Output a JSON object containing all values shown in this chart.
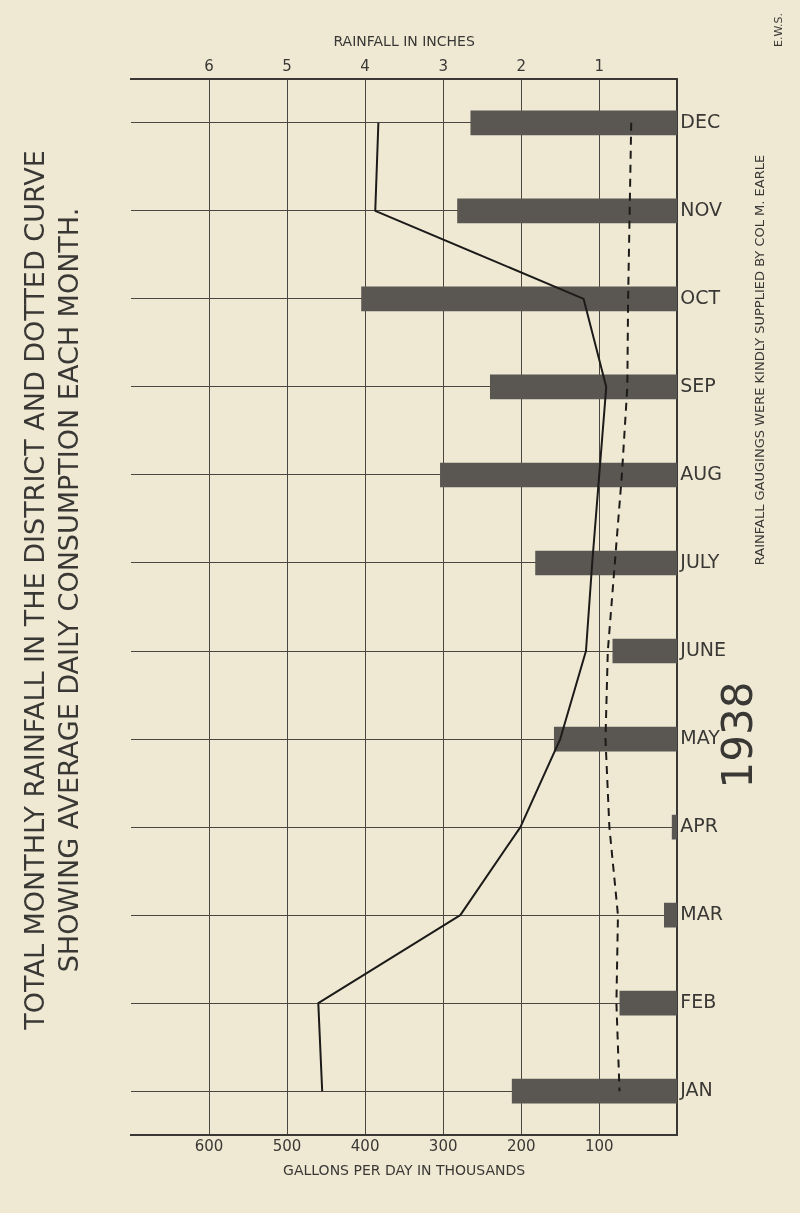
{
  "chart_data": {
    "type": "bar",
    "orientation": "horizontal",
    "title": "TOTAL MONTHLY RAINFALL IN THE DISTRICT AND DOTTED CURVE SHOWING AVERAGE DAILY CONSUMPTION EACH MONTH.",
    "categories": [
      "DEC",
      "NOV",
      "OCT",
      "SEP",
      "AUG",
      "JULY",
      "JUNE",
      "MAY",
      "APR",
      "MAR",
      "FEB",
      "JAN"
    ],
    "series": [
      {
        "axis": "x2",
        "color": "#5a5753",
        "values": [
          2.65,
          2.82,
          4.05,
          2.4,
          3.04,
          1.82,
          0.83,
          1.58,
          0.07,
          0.17,
          0.74,
          2.12
        ]
      },
      {
        "type": "line",
        "color": "#1c1b19",
        "line_style": "solid",
        "values": [
          383,
          387,
          120,
          91,
          100,
          109,
          117,
          150,
          201,
          278,
          460,
          455
        ]
      },
      {
        "type": "line",
        "color": "#1c1b19",
        "line_style": "dashed",
        "values": [
          59,
          61,
          63,
          64,
          71,
          80,
          89,
          92,
          87,
          76,
          78,
          74
        ]
      }
    ],
    "xlabel": "GALLONS PER DAY IN THOUSANDS",
    "xlim": [
      700,
      0
    ],
    "xticks": [
      600,
      500,
      400,
      300,
      200,
      100
    ],
    "x2label": "RAINFALL IN INCHES",
    "x2lim": [
      7,
      0
    ],
    "x2ticks": [
      6,
      5,
      4,
      3,
      2,
      1
    ],
    "grid": true,
    "legend": false,
    "marker": "none",
    "annotations": [
      "1938",
      "RAINFALL GAUGINGS WERE KINDLY SUPPLIED BY COL M. EARLE",
      "E.W.S."
    ]
  }
}
